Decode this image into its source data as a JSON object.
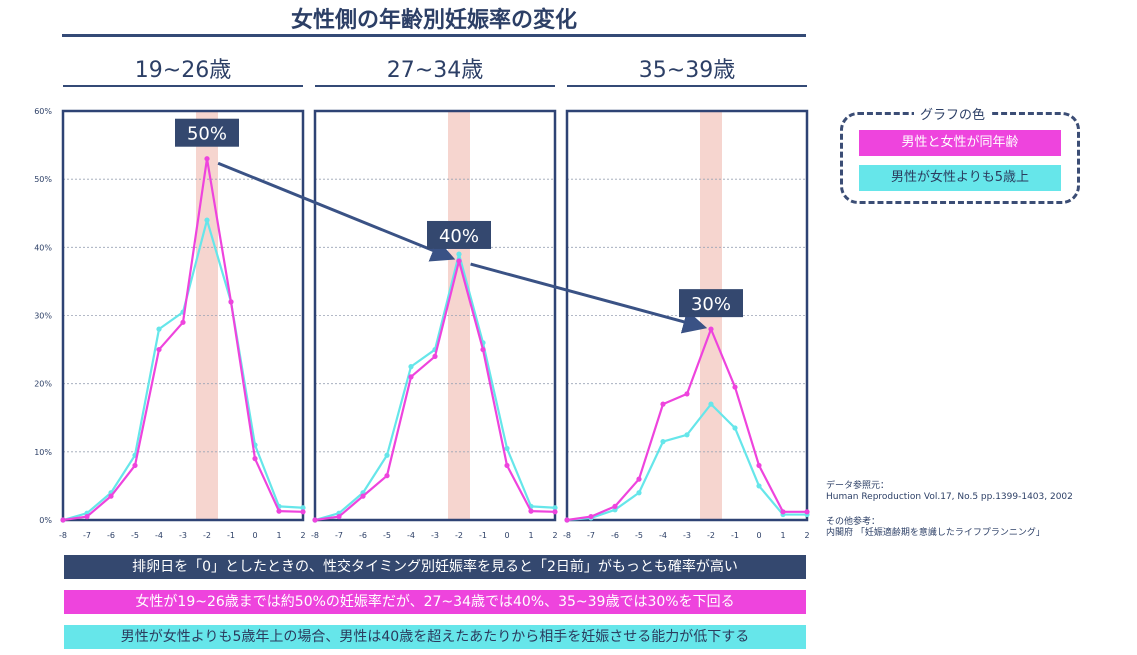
{
  "title": "女性側の年齢別妊娠率の変化",
  "panels": [
    {
      "label": "19~26歳",
      "callout": "50%"
    },
    {
      "label": "27~34歳",
      "callout": "40%"
    },
    {
      "label": "35~39歳",
      "callout": "30%"
    }
  ],
  "legend": {
    "title": "グラフの色",
    "items": [
      {
        "label": "男性と女性が同年齢",
        "color": "#ee44dd"
      },
      {
        "label": "男性が女性よりも5歳上",
        "color": "#66e6ea"
      }
    ]
  },
  "source": {
    "line1": "データ参照元：",
    "line2": "Human Reproduction Vol.17, No.5 pp.1399-1403, 2002",
    "line3": "その他参考：",
    "line4": "内閣府 「妊娠適齢期を意識したライフプランニング」"
  },
  "banners": [
    {
      "text": "排卵日を「0」としたときの、性交タイミング別妊娠率を見ると「2日前」がもっとも確率が高い",
      "bg": "#34486f",
      "fg": "#ffffff"
    },
    {
      "text": "女性が19~26歳までは約50%の妊娠率だが、27~34歳では40%、35~39歳では30%を下回る",
      "bg": "#ee44dd",
      "fg": "#ffffff"
    },
    {
      "text": "男性が女性よりも5歳年上の場合、男性は40歳を超えたあたりから相手を妊娠させる能力が低下する",
      "bg": "#66e6ea",
      "fg": "#2b3c5e"
    }
  ],
  "colors": {
    "frame": "#2e4374",
    "highlight": "#f6d5cf",
    "arrow": "#3a5285",
    "callout_bg": "#34486f"
  },
  "chart_data": [
    {
      "type": "line",
      "title": "19~26歳",
      "x": [
        -8,
        -7,
        -6,
        -5,
        -4,
        -3,
        -2,
        -1,
        0,
        1,
        2
      ],
      "y_ticks": [
        "0%",
        "10%",
        "20%",
        "30%",
        "40%",
        "50%",
        "60%"
      ],
      "ylim": [
        0,
        60
      ],
      "highlight_x": -2,
      "series": [
        {
          "name": "男性と女性が同年齢",
          "values": [
            0,
            0.5,
            3.5,
            8,
            25,
            29,
            53,
            32,
            9,
            1.3,
            1.2
          ]
        },
        {
          "name": "男性が女性よりも5歳上",
          "values": [
            0,
            1,
            4,
            9.5,
            28,
            30.5,
            44,
            32,
            11,
            2,
            1.8
          ]
        }
      ]
    },
    {
      "type": "line",
      "title": "27~34歳",
      "x": [
        -8,
        -7,
        -6,
        -5,
        -4,
        -3,
        -2,
        -1,
        0,
        1,
        2
      ],
      "ylim": [
        0,
        60
      ],
      "highlight_x": -2,
      "series": [
        {
          "name": "男性と女性が同年齢",
          "values": [
            0,
            0.5,
            3.5,
            6.5,
            21,
            24,
            38,
            25,
            8,
            1.3,
            1.2
          ]
        },
        {
          "name": "男性が女性よりも5歳上",
          "values": [
            0,
            1,
            4,
            9.5,
            22.5,
            25,
            39,
            26,
            10.5,
            2,
            1.8
          ]
        }
      ]
    },
    {
      "type": "line",
      "title": "35~39歳",
      "x": [
        -8,
        -7,
        -6,
        -5,
        -4,
        -3,
        -2,
        -1,
        0,
        1,
        2
      ],
      "ylim": [
        0,
        60
      ],
      "highlight_x": -2,
      "series": [
        {
          "name": "男性と女性が同年齢",
          "values": [
            0,
            0.5,
            2,
            6,
            17,
            18.5,
            28,
            19.5,
            8,
            1.2,
            1.2
          ]
        },
        {
          "name": "男性が女性よりも5歳上",
          "values": [
            0,
            0.3,
            1.5,
            4,
            11.5,
            12.5,
            17,
            13.5,
            5,
            0.8,
            0.8
          ]
        }
      ]
    }
  ]
}
